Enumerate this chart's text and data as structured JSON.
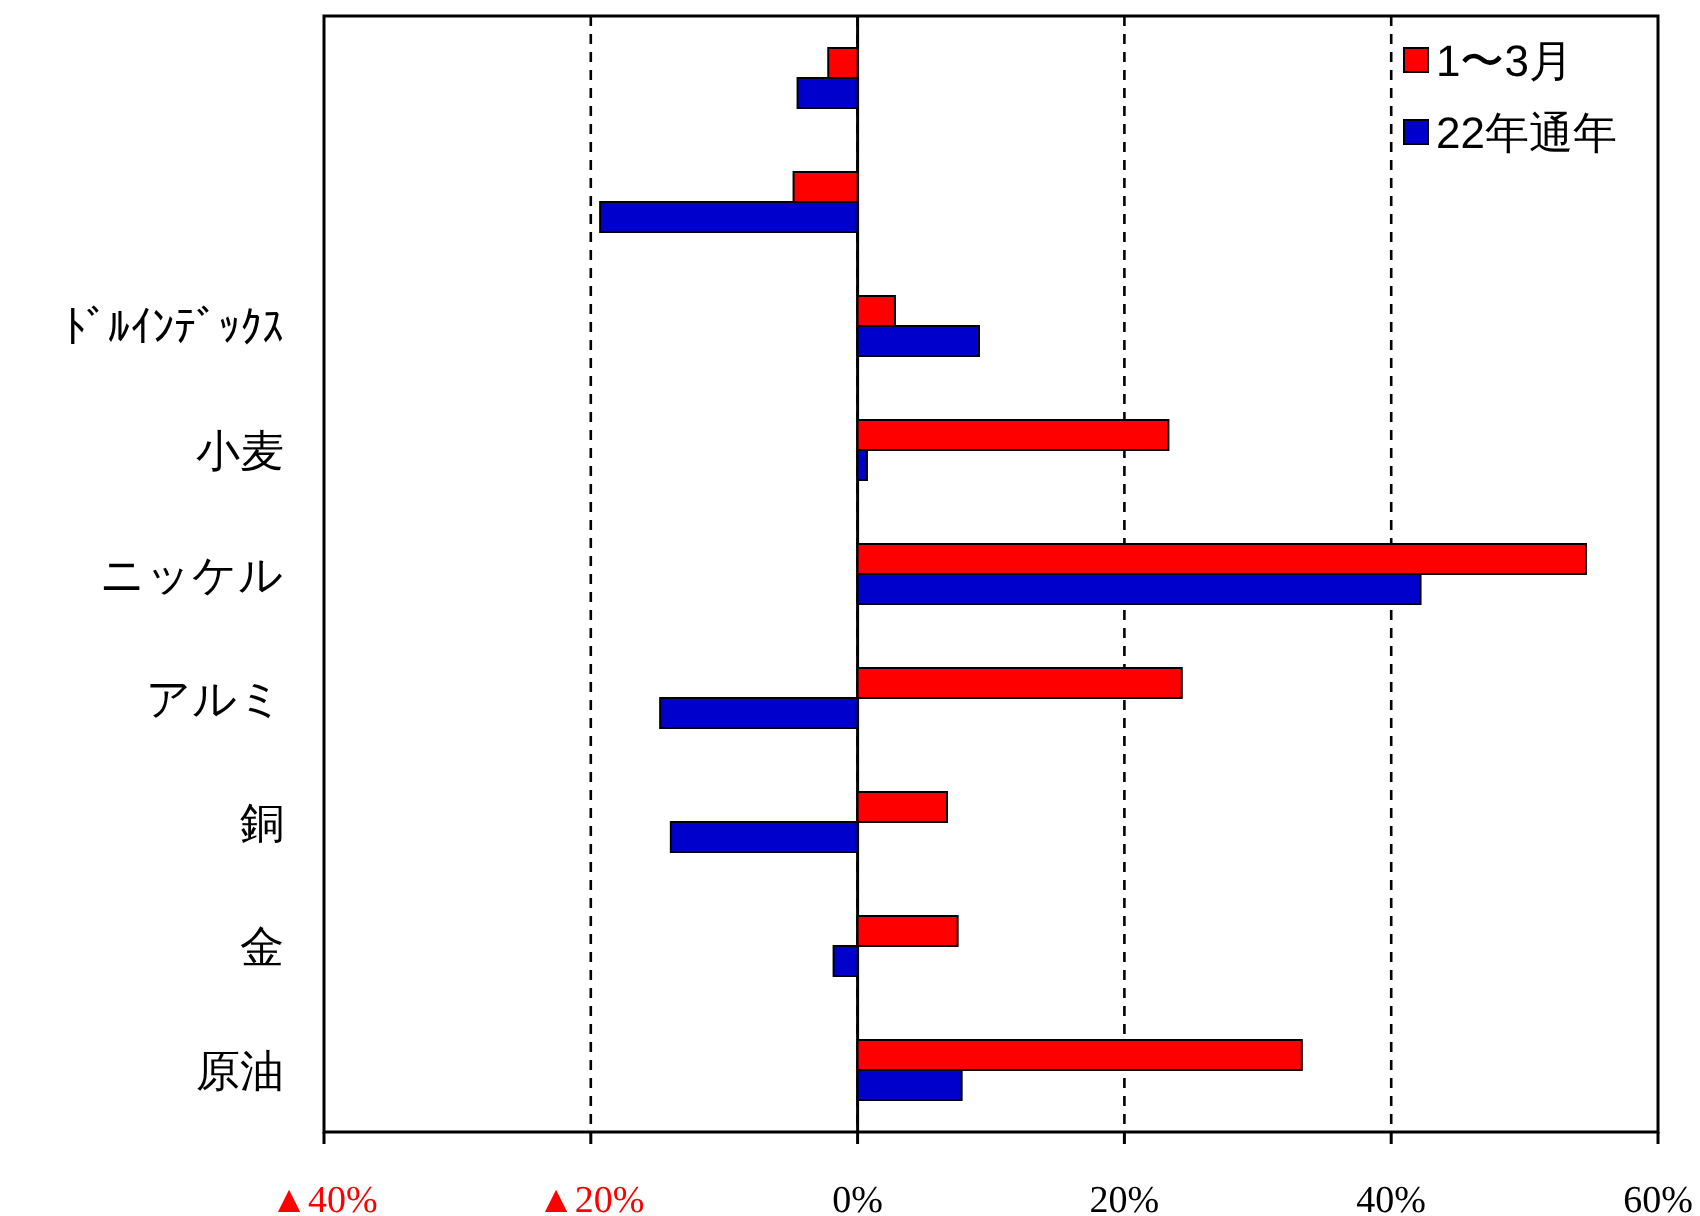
{
  "chart_data": {
    "type": "bar",
    "orientation": "horizontal",
    "categories": [
      null,
      null,
      "ﾄﾞﾙｲﾝﾃﾞｯｸｽ",
      "小麦",
      "ニッケル",
      "アルミ",
      "銅",
      "金",
      "原油"
    ],
    "series": [
      {
        "name": "1〜3月",
        "color": "#ff0000",
        "values": [
          -2.2,
          -4.8,
          2.8,
          23.3,
          54.6,
          24.3,
          6.7,
          7.5,
          33.3
        ]
      },
      {
        "name": "22年通年",
        "color": "#0000cc",
        "values": [
          -4.5,
          -19.3,
          9.1,
          0.7,
          42.2,
          -14.8,
          -14.0,
          -1.8,
          7.8
        ]
      }
    ],
    "xlim": [
      -40,
      60
    ],
    "xticks": [
      {
        "value": -40,
        "label": "▲40%"
      },
      {
        "value": -20,
        "label": "▲20%"
      },
      {
        "value": 0,
        "label": "0%"
      },
      {
        "value": 20,
        "label": "20%"
      },
      {
        "value": 40,
        "label": "40%"
      },
      {
        "value": 60,
        "label": "60%"
      }
    ],
    "grid": "x",
    "legend": "top right"
  }
}
